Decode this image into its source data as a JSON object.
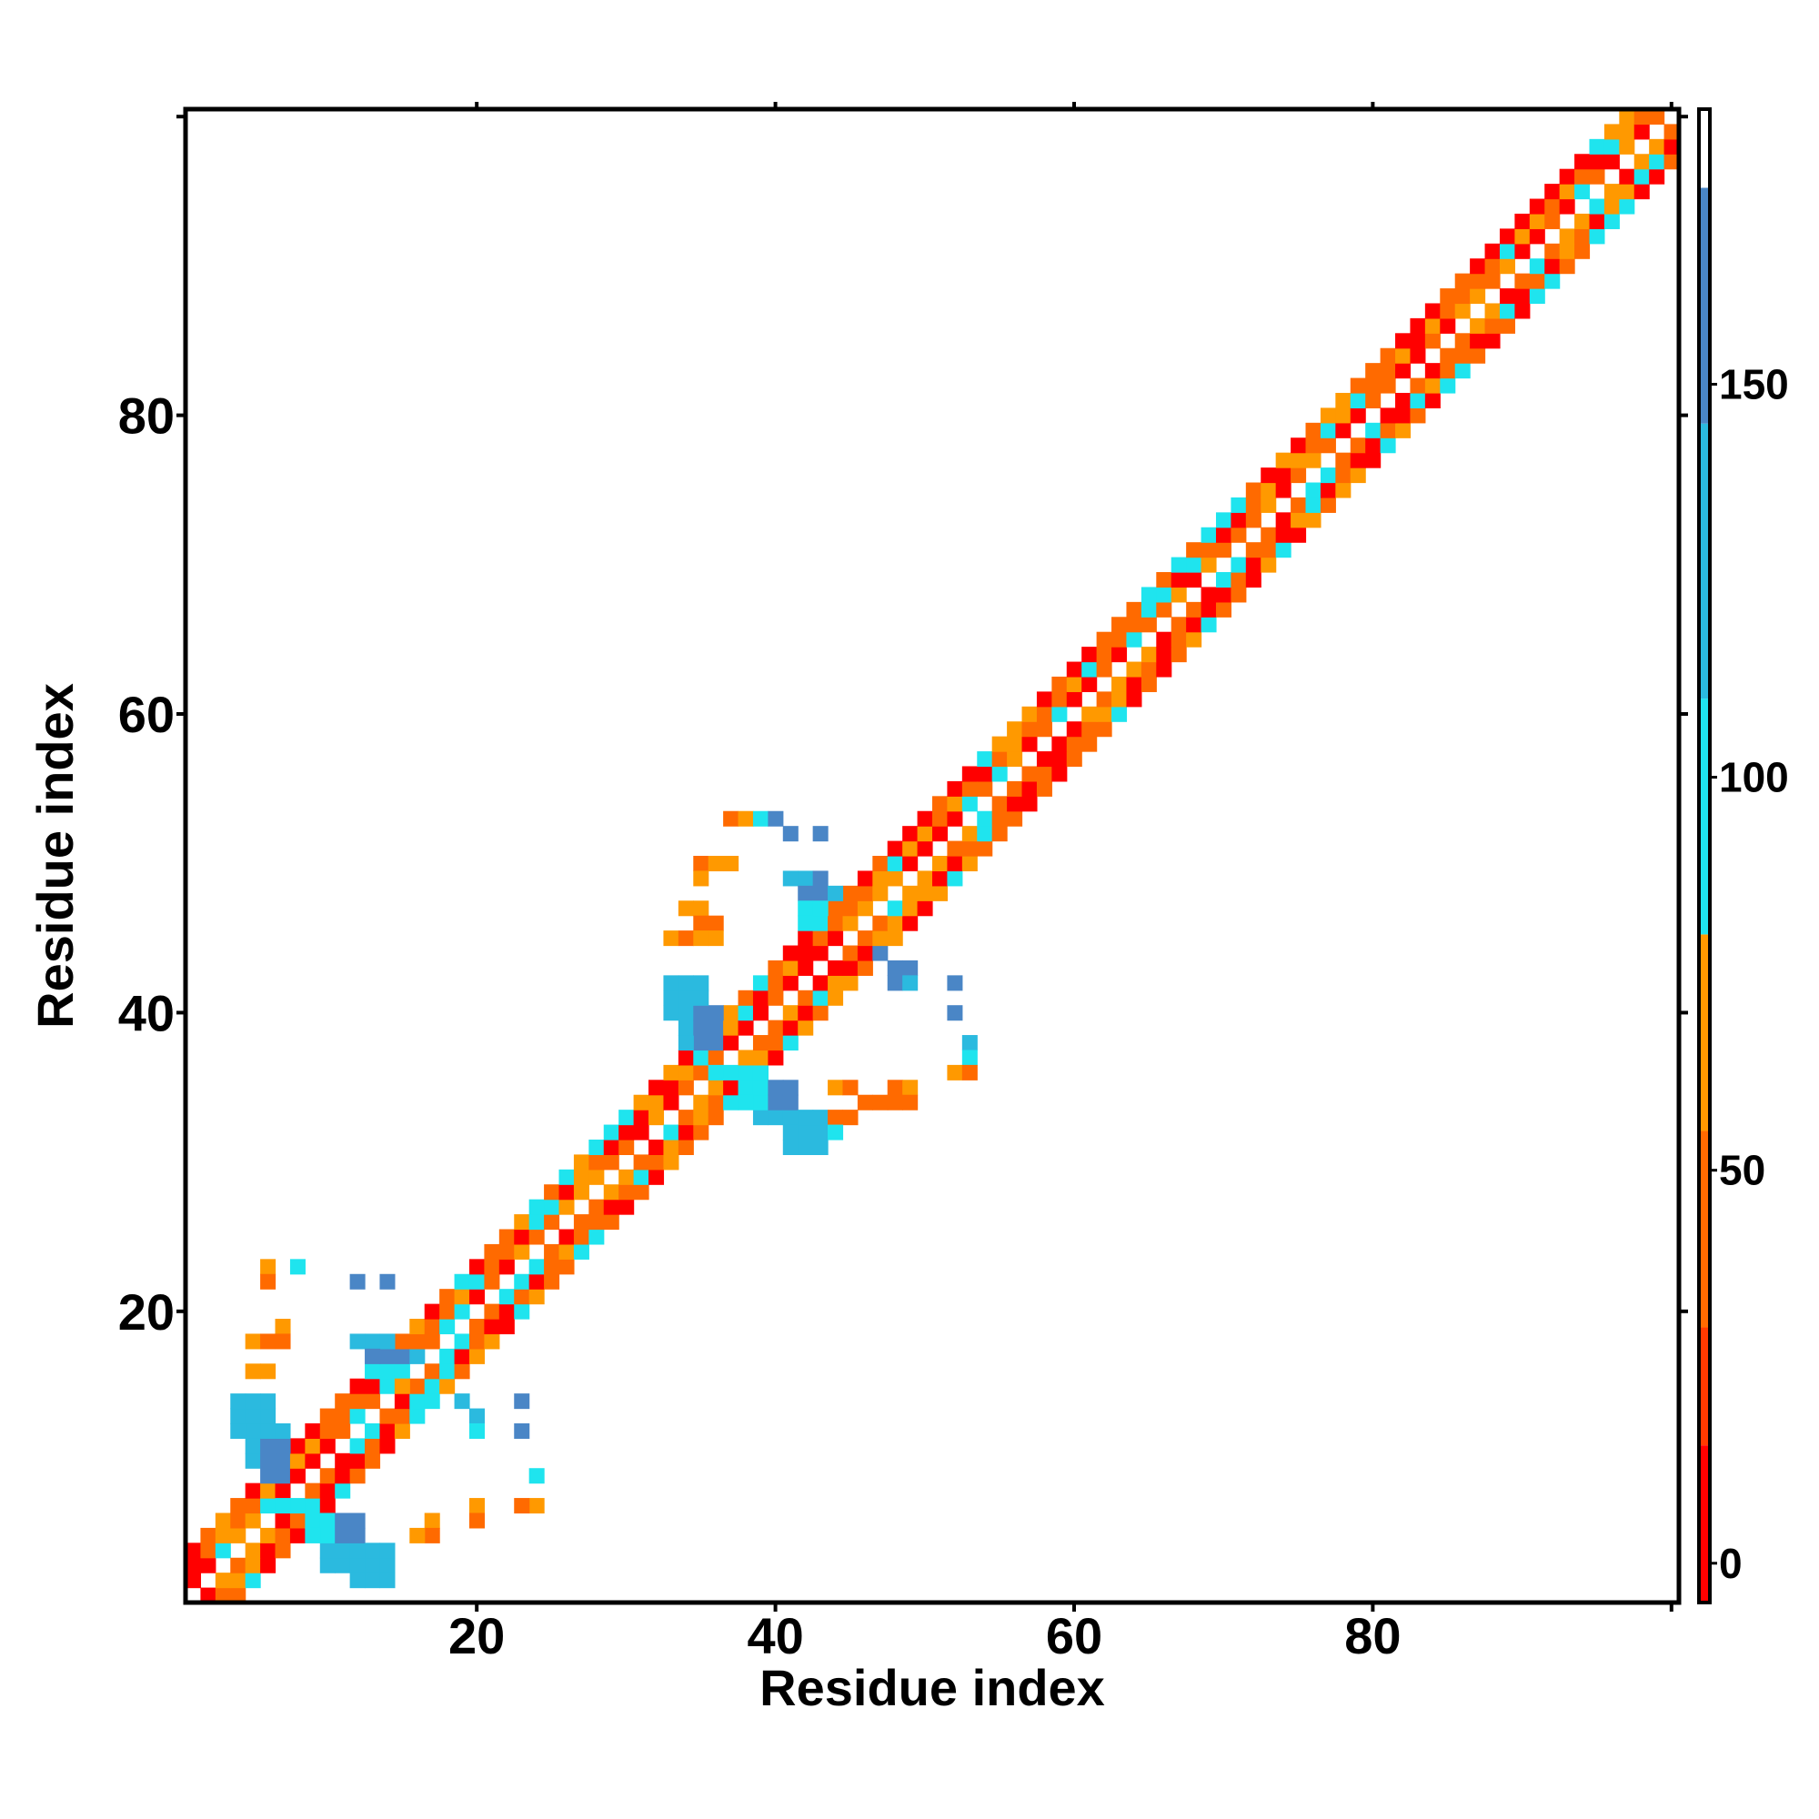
{
  "chart_data": {
    "type": "heatmap",
    "title": "",
    "xlabel": "Residue index",
    "ylabel": "Residue index",
    "xlim": [
      0.5,
      100.5
    ],
    "ylim": [
      0.5,
      100.5
    ],
    "x_ticks": [
      "20",
      "40",
      "60",
      "80"
    ],
    "y_ticks": [
      "20",
      "40",
      "60",
      "80"
    ],
    "colorbar": {
      "range": [
        -5,
        185
      ],
      "tick_labels": [
        "0",
        "50",
        "100",
        "150"
      ],
      "bands": [
        {
          "from": -5,
          "to": 15,
          "color": "#ff0000"
        },
        {
          "from": 15,
          "to": 30,
          "color": "#ff3a00"
        },
        {
          "from": 30,
          "to": 55,
          "color": "#ff6a00"
        },
        {
          "from": 55,
          "to": 80,
          "color": "#ff9900"
        },
        {
          "from": 80,
          "to": 110,
          "color": "#1fe4ee"
        },
        {
          "from": 110,
          "to": 145,
          "color": "#2bbadf"
        },
        {
          "from": 145,
          "to": 175,
          "color": "#4a86c6"
        },
        {
          "from": 175,
          "to": 185,
          "color": "#ffffff"
        }
      ]
    },
    "cell_colors": {
      "r": "#ff0000",
      "R": "#ff3a00",
      "o": "#ff6a00",
      "y": "#ff9900",
      "c": "#1fe4ee",
      "s": "#2bbadf",
      "b": "#4a86c6"
    },
    "diagonal_pattern": "occycroyocyrorocroyorroycoyrocroorcryorroyyocrryoyocroroyocryooryyoroyorcryrocroycoryrorocryorooyro",
    "blocks": [
      {
        "i0": 5,
        "j0": 10,
        "c": "s",
        "w": 3,
        "h": 3
      },
      {
        "i0": 4,
        "j0": 12,
        "c": "s",
        "w": 3,
        "h": 3
      },
      {
        "i0": 6,
        "j0": 9,
        "c": "b",
        "w": 2,
        "h": 3
      },
      {
        "i0": 10,
        "j0": 3,
        "c": "s",
        "w": 3,
        "h": 3
      },
      {
        "i0": 12,
        "j0": 2,
        "c": "s",
        "w": 3,
        "h": 3
      },
      {
        "i0": 10,
        "j0": 5,
        "c": "b",
        "w": 3,
        "h": 2
      },
      {
        "i0": 6,
        "j0": 7,
        "c": "c",
        "w": 4,
        "h": 1
      },
      {
        "i0": 9,
        "j0": 5,
        "c": "c",
        "w": 2,
        "h": 2
      },
      {
        "i0": 34,
        "j0": 38,
        "c": "s",
        "w": 3,
        "h": 3
      },
      {
        "i0": 33,
        "j0": 40,
        "c": "s",
        "w": 3,
        "h": 3
      },
      {
        "i0": 35,
        "j0": 38,
        "c": "b",
        "w": 2,
        "h": 3
      },
      {
        "i0": 39,
        "j0": 33,
        "c": "s",
        "w": 3,
        "h": 3
      },
      {
        "i0": 41,
        "j0": 31,
        "c": "s",
        "w": 3,
        "h": 3
      },
      {
        "i0": 39,
        "j0": 34,
        "c": "b",
        "w": 3,
        "h": 2
      },
      {
        "i0": 36,
        "j0": 36,
        "c": "c",
        "w": 4,
        "h": 1
      },
      {
        "i0": 38,
        "j0": 34,
        "c": "c",
        "w": 2,
        "h": 2
      }
    ],
    "cells": [
      [
        6,
        23,
        "y"
      ],
      [
        6,
        22,
        "o"
      ],
      [
        8,
        23,
        "c"
      ],
      [
        12,
        22,
        "b"
      ],
      [
        14,
        22,
        "b"
      ],
      [
        7,
        19,
        "y"
      ],
      [
        5,
        18,
        "y"
      ],
      [
        6,
        18,
        "o"
      ],
      [
        7,
        18,
        "o"
      ],
      [
        5,
        16,
        "y"
      ],
      [
        6,
        16,
        "y"
      ],
      [
        12,
        18,
        "s"
      ],
      [
        13,
        18,
        "s"
      ],
      [
        14,
        18,
        "s"
      ],
      [
        13,
        17,
        "b"
      ],
      [
        14,
        17,
        "b"
      ],
      [
        15,
        17,
        "b"
      ],
      [
        16,
        17,
        "s"
      ],
      [
        14,
        16,
        "c"
      ],
      [
        15,
        16,
        "c"
      ],
      [
        15,
        15,
        "y"
      ],
      [
        16,
        14,
        "c"
      ],
      [
        17,
        14,
        "c"
      ],
      [
        18,
        15,
        "y"
      ],
      [
        19,
        14,
        "s"
      ],
      [
        20,
        13,
        "s"
      ],
      [
        20,
        12,
        "c"
      ],
      [
        23,
        14,
        "b"
      ],
      [
        23,
        12,
        "b"
      ],
      [
        24,
        9,
        "c"
      ],
      [
        24,
        7,
        "y"
      ],
      [
        23,
        7,
        "o"
      ],
      [
        20,
        7,
        "y"
      ],
      [
        20,
        6,
        "o"
      ],
      [
        17,
        6,
        "y"
      ],
      [
        17,
        5,
        "o"
      ],
      [
        16,
        5,
        "y"
      ],
      [
        37,
        53,
        "o"
      ],
      [
        38,
        53,
        "y"
      ],
      [
        39,
        53,
        "c"
      ],
      [
        40,
        53,
        "b"
      ],
      [
        41,
        52,
        "b"
      ],
      [
        43,
        52,
        "b"
      ],
      [
        35,
        50,
        "o"
      ],
      [
        36,
        50,
        "y"
      ],
      [
        37,
        50,
        "y"
      ],
      [
        35,
        49,
        "y"
      ],
      [
        34,
        47,
        "y"
      ],
      [
        35,
        47,
        "y"
      ],
      [
        35,
        46,
        "o"
      ],
      [
        36,
        46,
        "o"
      ],
      [
        33,
        45,
        "y"
      ],
      [
        34,
        45,
        "o"
      ],
      [
        35,
        45,
        "y"
      ],
      [
        36,
        45,
        "y"
      ],
      [
        41,
        49,
        "s"
      ],
      [
        42,
        49,
        "s"
      ],
      [
        43,
        49,
        "b"
      ],
      [
        42,
        48,
        "b"
      ],
      [
        43,
        48,
        "b"
      ],
      [
        44,
        48,
        "s"
      ],
      [
        42,
        47,
        "c"
      ],
      [
        43,
        47,
        "c"
      ],
      [
        42,
        46,
        "c"
      ],
      [
        43,
        46,
        "c"
      ],
      [
        47,
        44,
        "b"
      ],
      [
        48,
        43,
        "b"
      ],
      [
        49,
        43,
        "b"
      ],
      [
        48,
        42,
        "b"
      ],
      [
        49,
        42,
        "s"
      ],
      [
        52,
        42,
        "b"
      ],
      [
        52,
        40,
        "b"
      ],
      [
        53,
        38,
        "s"
      ],
      [
        53,
        37,
        "c"
      ],
      [
        52,
        36,
        "y"
      ],
      [
        53,
        36,
        "o"
      ],
      [
        48,
        35,
        "o"
      ],
      [
        49,
        35,
        "y"
      ],
      [
        48,
        34,
        "y"
      ],
      [
        44,
        35,
        "y"
      ],
      [
        45,
        35,
        "o"
      ],
      [
        46,
        34,
        "o"
      ],
      [
        47,
        34,
        "o"
      ],
      [
        48,
        34,
        "o"
      ],
      [
        49,
        34,
        "o"
      ],
      [
        44,
        33,
        "o"
      ],
      [
        45,
        33,
        "o"
      ],
      [
        44,
        32,
        "c"
      ]
    ]
  }
}
